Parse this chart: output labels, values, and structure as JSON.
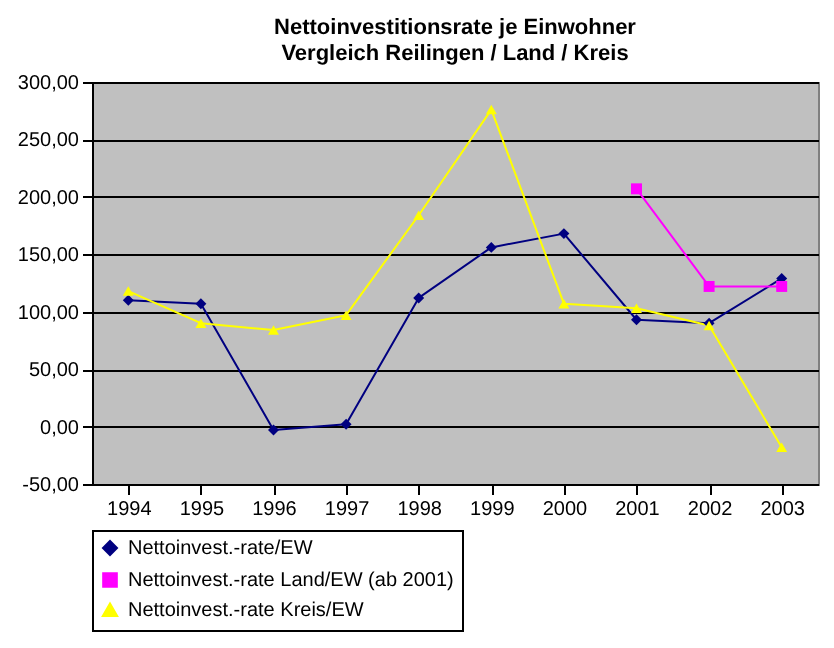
{
  "chart_data": {
    "type": "line",
    "title": "Nettoinvestitionsrate je Einwohner\nVergleich Reilingen / Land / Kreis",
    "categories": [
      "1994",
      "1995",
      "1996",
      "1997",
      "1998",
      "1999",
      "2000",
      "2001",
      "2002",
      "2003"
    ],
    "series": [
      {
        "name": "Nettoinvest.-rate/EW",
        "color": "#000080",
        "marker": "diamond",
        "values": [
          110,
          107,
          -3,
          2,
          112,
          156,
          168,
          93,
          90,
          129
        ]
      },
      {
        "name": "Nettoinvest.-rate Land/EW (ab 2001)",
        "color": "#ff00ff",
        "marker": "square",
        "values": [
          null,
          null,
          null,
          null,
          null,
          null,
          null,
          207,
          122,
          122
        ]
      },
      {
        "name": "Nettoinvest.-rate Kreis/EW",
        "color": "#ffff00",
        "marker": "triangle",
        "values": [
          118,
          90,
          84,
          97,
          184,
          276,
          107,
          103,
          88,
          -18
        ]
      }
    ],
    "ylim": [
      -50,
      300
    ],
    "yticks": [
      {
        "value": -50,
        "label": "-50,00"
      },
      {
        "value": 0,
        "label": "0,00"
      },
      {
        "value": 50,
        "label": "50,00"
      },
      {
        "value": 100,
        "label": "100,00"
      },
      {
        "value": 150,
        "label": "150,00"
      },
      {
        "value": 200,
        "label": "200,00"
      },
      {
        "value": 250,
        "label": "250,00"
      },
      {
        "value": 300,
        "label": "300,00"
      }
    ],
    "grid": "y",
    "legend": "bottom",
    "line_style": "solid"
  }
}
